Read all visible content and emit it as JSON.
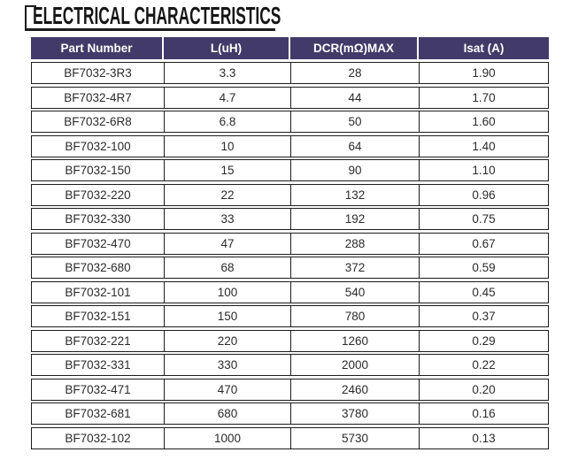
{
  "title": "ELECTRICAL CHARACTERISTICS",
  "colors": {
    "header_bg": "#423a69",
    "header_text": "#ffffff",
    "row_border": "#1c1c1c",
    "body_text": "#2b2b2b",
    "title_color": "#161616"
  },
  "table": {
    "columns": [
      "Part Number",
      "L(uH)",
      "DCR(mΩ)MAX",
      "Isat (A)"
    ],
    "rows": [
      {
        "part_number": "BF7032-3R3",
        "l_uh": "3.3",
        "dcr_max": "28",
        "isat": "1.90"
      },
      {
        "part_number": "BF7032-4R7",
        "l_uh": "4.7",
        "dcr_max": "44",
        "isat": "1.70"
      },
      {
        "part_number": "BF7032-6R8",
        "l_uh": "6.8",
        "dcr_max": "50",
        "isat": "1.60"
      },
      {
        "part_number": "BF7032-100",
        "l_uh": "10",
        "dcr_max": "64",
        "isat": "1.40"
      },
      {
        "part_number": "BF7032-150",
        "l_uh": "15",
        "dcr_max": "90",
        "isat": "1.10"
      },
      {
        "part_number": "BF7032-220",
        "l_uh": "22",
        "dcr_max": "132",
        "isat": "0.96"
      },
      {
        "part_number": "BF7032-330",
        "l_uh": "33",
        "dcr_max": "192",
        "isat": "0.75"
      },
      {
        "part_number": "BF7032-470",
        "l_uh": "47",
        "dcr_max": "288",
        "isat": "0.67"
      },
      {
        "part_number": "BF7032-680",
        "l_uh": "68",
        "dcr_max": "372",
        "isat": "0.59"
      },
      {
        "part_number": "BF7032-101",
        "l_uh": "100",
        "dcr_max": "540",
        "isat": "0.45"
      },
      {
        "part_number": "BF7032-151",
        "l_uh": "150",
        "dcr_max": "780",
        "isat": "0.37"
      },
      {
        "part_number": "BF7032-221",
        "l_uh": "220",
        "dcr_max": "1260",
        "isat": "0.29"
      },
      {
        "part_number": "BF7032-331",
        "l_uh": "330",
        "dcr_max": "2000",
        "isat": "0.22"
      },
      {
        "part_number": "BF7032-471",
        "l_uh": "470",
        "dcr_max": "2460",
        "isat": "0.20"
      },
      {
        "part_number": "BF7032-681",
        "l_uh": "680",
        "dcr_max": "3780",
        "isat": "0.16"
      },
      {
        "part_number": "BF7032-102",
        "l_uh": "1000",
        "dcr_max": "5730",
        "isat": "0.13"
      }
    ]
  }
}
